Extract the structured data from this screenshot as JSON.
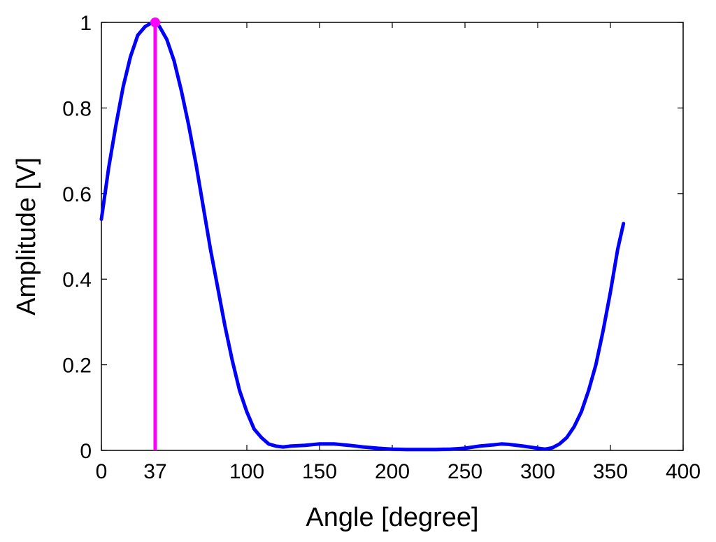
{
  "chart_data": {
    "type": "line",
    "title": "",
    "xlabel": "Angle [degree]",
    "ylabel": "Amplitude [V]",
    "xlim": [
      0,
      400
    ],
    "ylim": [
      0,
      1
    ],
    "grid": false,
    "legend": "none",
    "x_ticks": [
      {
        "value": 0,
        "label": "0"
      },
      {
        "value": 37,
        "label": "37"
      },
      {
        "value": 100,
        "label": "100"
      },
      {
        "value": 150,
        "label": "150"
      },
      {
        "value": 200,
        "label": "200"
      },
      {
        "value": 250,
        "label": "250"
      },
      {
        "value": 300,
        "label": "300"
      },
      {
        "value": 350,
        "label": "350"
      },
      {
        "value": 400,
        "label": "400"
      }
    ],
    "y_ticks": [
      {
        "value": 0,
        "label": "0"
      },
      {
        "value": 0.2,
        "label": "0.2"
      },
      {
        "value": 0.4,
        "label": "0.4"
      },
      {
        "value": 0.6,
        "label": "0.6"
      },
      {
        "value": 0.8,
        "label": "0.8"
      },
      {
        "value": 1,
        "label": "1"
      }
    ],
    "series": [
      {
        "color": "#0000ff",
        "x": [
          0,
          5,
          10,
          15,
          20,
          25,
          30,
          35,
          37,
          40,
          45,
          50,
          55,
          60,
          65,
          70,
          75,
          80,
          85,
          90,
          95,
          100,
          105,
          110,
          115,
          120,
          125,
          130,
          140,
          150,
          160,
          170,
          180,
          190,
          200,
          210,
          220,
          230,
          240,
          250,
          260,
          270,
          275,
          280,
          290,
          300,
          305,
          310,
          315,
          320,
          325,
          330,
          335,
          340,
          345,
          350,
          355,
          359
        ],
        "y": [
          0.54,
          0.66,
          0.76,
          0.85,
          0.92,
          0.97,
          0.99,
          1.0,
          1.0,
          0.99,
          0.96,
          0.91,
          0.84,
          0.76,
          0.67,
          0.57,
          0.47,
          0.38,
          0.29,
          0.21,
          0.14,
          0.09,
          0.05,
          0.03,
          0.015,
          0.01,
          0.008,
          0.01,
          0.012,
          0.015,
          0.015,
          0.012,
          0.008,
          0.005,
          0.003,
          0.002,
          0.002,
          0.002,
          0.003,
          0.005,
          0.01,
          0.013,
          0.015,
          0.014,
          0.01,
          0.005,
          0.003,
          0.006,
          0.015,
          0.03,
          0.055,
          0.09,
          0.14,
          0.2,
          0.28,
          0.37,
          0.47,
          0.53
        ]
      }
    ],
    "marker_line": {
      "x": 37,
      "y": 1.0,
      "color": "#ff00ff"
    }
  }
}
